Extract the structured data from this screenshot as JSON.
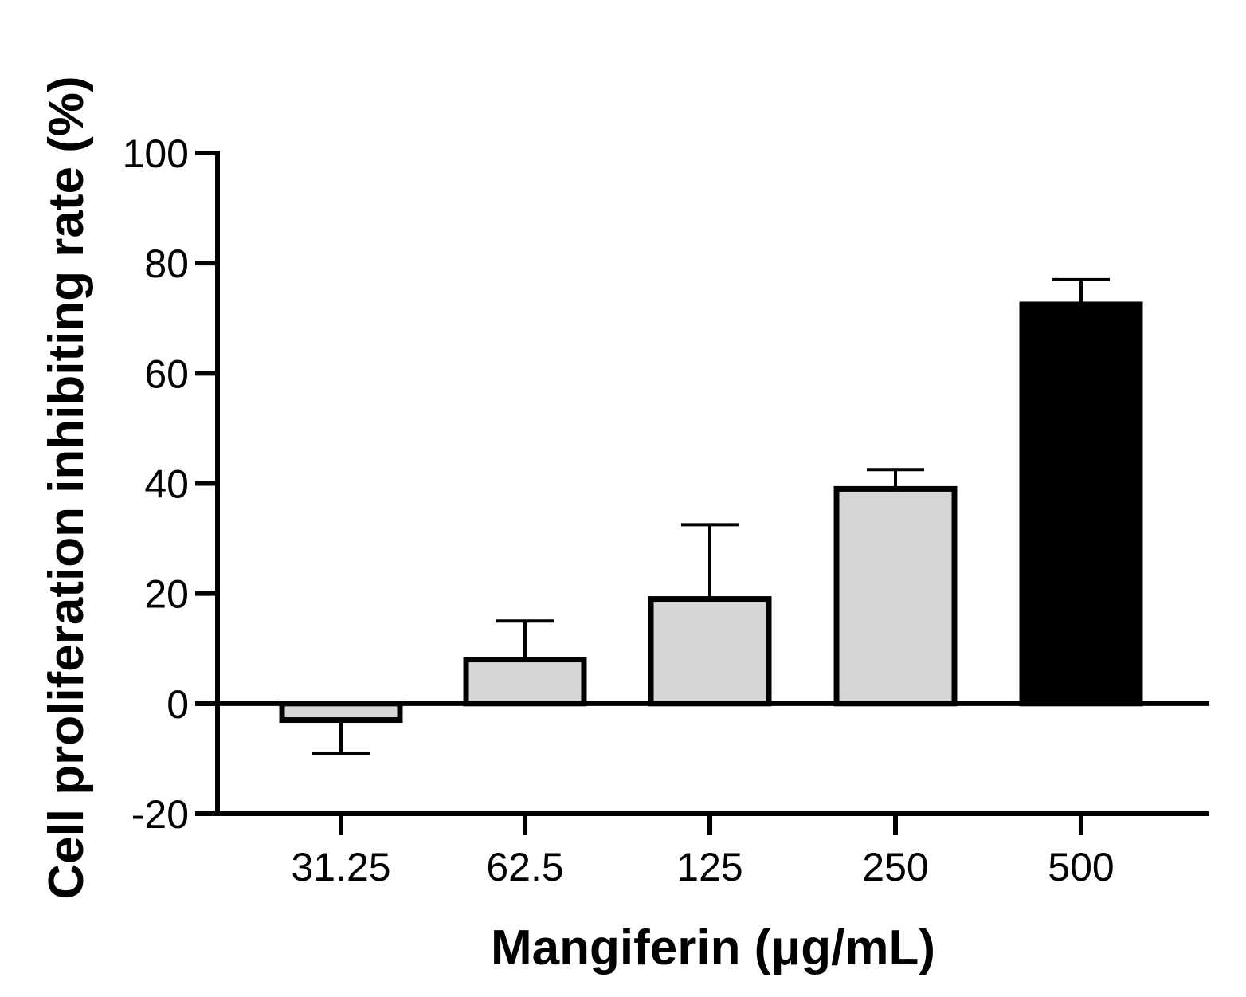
{
  "chart_data": {
    "type": "bar",
    "title": "",
    "xlabel": "Mangiferin (μg/mL)",
    "ylabel": "Cell proliferation inhibiting rate (%)",
    "ylim": [
      -20,
      100
    ],
    "yticks": [
      "100",
      "80",
      "60",
      "40",
      "20",
      "0",
      "-20"
    ],
    "ytick_values": [
      100,
      80,
      60,
      40,
      20,
      0,
      -20
    ],
    "categories": [
      "31.25",
      "62.5",
      "125",
      "250",
      "500"
    ],
    "values": [
      -3,
      8,
      19,
      39,
      72.5
    ],
    "error_upper": [
      -9,
      15,
      32.5,
      42.5,
      77
    ],
    "bar_colors": [
      "#d6d6d6",
      "#d6d6d6",
      "#d6d6d6",
      "#d6d6d6",
      "#000000"
    ],
    "grid": false,
    "legend": false
  }
}
